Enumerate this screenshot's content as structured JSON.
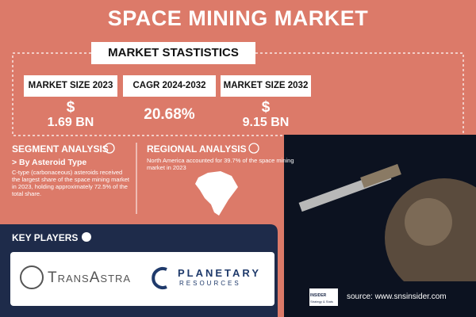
{
  "header": {
    "title": "SPACE MINING MARKET"
  },
  "statistics": {
    "title": "MARKET STASTISTICS",
    "items": [
      {
        "label": "MARKET SIZE 2023",
        "currency": "$",
        "value": "1.69 BN"
      },
      {
        "label": "CAGR 2024-2032",
        "value": "20.68%"
      },
      {
        "label": "MARKET SIZE 2032",
        "currency": "$",
        "value": "9.15 BN"
      }
    ]
  },
  "segment": {
    "title": "SEGMENT ANALYSIS",
    "subtitle": "> By Asteroid Type",
    "text": "C-type (carbonaceous) asteroids received the largest share of the space mining market in 2023, holding approximately 72.5% of the total share."
  },
  "regional": {
    "title": "REGIONAL ANALYSIS",
    "text": "North America accounted for 39.7% of the space mining market in 2023"
  },
  "key_players": {
    "title": "KEY PLAYERS",
    "companies": [
      "TransAstra",
      "PLANETARY",
      "RESOURCES"
    ]
  },
  "source": {
    "logo": [
      "INSIDER",
      "Strategy & Stats"
    ],
    "text": "source: www.snsinsider.com"
  }
}
